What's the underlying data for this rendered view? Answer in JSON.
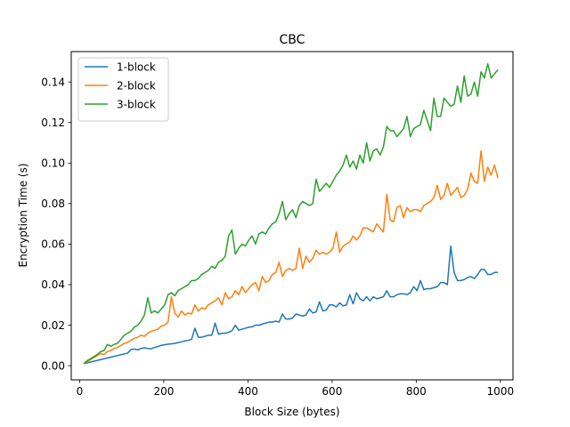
{
  "chart_data": {
    "type": "line",
    "title": "CBC",
    "xlabel": "Block Size (bytes)",
    "ylabel": "Encryption Time (s)",
    "xlim": [
      -20,
      1030
    ],
    "ylim": [
      -0.007,
      0.155
    ],
    "xticks": [
      0,
      200,
      400,
      600,
      800,
      1000
    ],
    "xtick_labels": [
      "0",
      "200",
      "400",
      "600",
      "800",
      "1000"
    ],
    "yticks": [
      0.0,
      0.02,
      0.04,
      0.06,
      0.08,
      0.1,
      0.12,
      0.14
    ],
    "ytick_labels": [
      "0.00",
      "0.02",
      "0.04",
      "0.06",
      "0.08",
      "0.10",
      "0.12",
      "0.14"
    ],
    "grid": false,
    "legend_position": "top-left",
    "x": [
      10,
      18,
      26,
      34,
      42,
      50,
      58,
      66,
      74,
      82,
      90,
      98,
      106,
      114,
      122,
      130,
      138,
      146,
      154,
      162,
      170,
      178,
      186,
      194,
      202,
      210,
      218,
      226,
      234,
      242,
      250,
      258,
      266,
      274,
      282,
      290,
      298,
      306,
      314,
      322,
      330,
      338,
      346,
      354,
      362,
      370,
      378,
      386,
      394,
      402,
      410,
      418,
      426,
      434,
      442,
      450,
      458,
      466,
      474,
      482,
      490,
      498,
      506,
      514,
      522,
      530,
      538,
      546,
      554,
      562,
      570,
      578,
      586,
      594,
      602,
      610,
      618,
      626,
      634,
      642,
      650,
      658,
      666,
      674,
      682,
      690,
      698,
      706,
      714,
      722,
      730,
      738,
      746,
      754,
      762,
      770,
      778,
      786,
      794,
      802,
      810,
      818,
      826,
      834,
      842,
      850,
      858,
      866,
      874,
      882,
      890,
      898,
      906,
      914,
      922,
      930,
      938,
      946,
      954,
      962,
      970,
      978,
      986,
      994
    ],
    "series": [
      {
        "name": "1-block",
        "color": "#1f77b4",
        "values": [
          0.001,
          0.0014,
          0.0018,
          0.0022,
          0.0026,
          0.003,
          0.0034,
          0.0038,
          0.0042,
          0.0046,
          0.005,
          0.0054,
          0.0058,
          0.0062,
          0.008,
          0.0082,
          0.0078,
          0.0085,
          0.0088,
          0.0085,
          0.0083,
          0.009,
          0.0095,
          0.01,
          0.0103,
          0.0106,
          0.0108,
          0.011,
          0.0114,
          0.0118,
          0.0122,
          0.0125,
          0.013,
          0.0185,
          0.014,
          0.014,
          0.0145,
          0.015,
          0.015,
          0.021,
          0.0155,
          0.016,
          0.016,
          0.0165,
          0.0172,
          0.02,
          0.0175,
          0.018,
          0.0185,
          0.019,
          0.0192,
          0.02,
          0.02,
          0.0205,
          0.021,
          0.0215,
          0.0215,
          0.022,
          0.0215,
          0.0255,
          0.023,
          0.023,
          0.0235,
          0.0255,
          0.025,
          0.0245,
          0.025,
          0.028,
          0.026,
          0.0265,
          0.0315,
          0.027,
          0.0275,
          0.03,
          0.03,
          0.029,
          0.031,
          0.0295,
          0.03,
          0.035,
          0.0305,
          0.036,
          0.033,
          0.032,
          0.034,
          0.032,
          0.034,
          0.033,
          0.0335,
          0.034,
          0.037,
          0.034,
          0.034,
          0.035,
          0.0355,
          0.0355,
          0.035,
          0.036,
          0.039,
          0.037,
          0.042,
          0.0375,
          0.038,
          0.038,
          0.0385,
          0.039,
          0.041,
          0.041,
          0.04,
          0.059,
          0.046,
          0.042,
          0.042,
          0.0425,
          0.0435,
          0.044,
          0.043,
          0.045,
          0.0475,
          0.0475,
          0.045,
          0.045,
          0.046,
          0.046
        ]
      },
      {
        "name": "2-block",
        "color": "#ff7f0e",
        "values": [
          0.001,
          0.002,
          0.003,
          0.004,
          0.005,
          0.006,
          0.0055,
          0.007,
          0.0075,
          0.0085,
          0.009,
          0.01,
          0.011,
          0.0115,
          0.0125,
          0.0135,
          0.014,
          0.015,
          0.0145,
          0.016,
          0.017,
          0.0175,
          0.018,
          0.0195,
          0.02,
          0.0215,
          0.034,
          0.026,
          0.024,
          0.027,
          0.025,
          0.026,
          0.0255,
          0.03,
          0.027,
          0.0285,
          0.028,
          0.03,
          0.031,
          0.032,
          0.0335,
          0.03,
          0.036,
          0.033,
          0.034,
          0.037,
          0.035,
          0.039,
          0.036,
          0.038,
          0.04,
          0.041,
          0.037,
          0.044,
          0.041,
          0.042,
          0.045,
          0.046,
          0.051,
          0.044,
          0.047,
          0.048,
          0.047,
          0.048,
          0.058,
          0.048,
          0.054,
          0.051,
          0.053,
          0.057,
          0.055,
          0.056,
          0.055,
          0.056,
          0.058,
          0.066,
          0.056,
          0.059,
          0.06,
          0.061,
          0.064,
          0.062,
          0.064,
          0.068,
          0.068,
          0.067,
          0.066,
          0.07,
          0.068,
          0.066,
          0.0845,
          0.072,
          0.071,
          0.078,
          0.079,
          0.073,
          0.078,
          0.076,
          0.077,
          0.077,
          0.076,
          0.079,
          0.08,
          0.081,
          0.083,
          0.089,
          0.082,
          0.084,
          0.09,
          0.084,
          0.086,
          0.088,
          0.083,
          0.084,
          0.087,
          0.095,
          0.091,
          0.09,
          0.106,
          0.091,
          0.098,
          0.094,
          0.099,
          0.0925
        ]
      },
      {
        "name": "3-block",
        "color": "#2ca02c",
        "values": [
          0.001,
          0.0025,
          0.0035,
          0.0045,
          0.0055,
          0.007,
          0.0075,
          0.0105,
          0.0095,
          0.0105,
          0.011,
          0.013,
          0.015,
          0.016,
          0.017,
          0.019,
          0.02,
          0.022,
          0.025,
          0.0335,
          0.026,
          0.027,
          0.026,
          0.028,
          0.03,
          0.035,
          0.036,
          0.0345,
          0.037,
          0.038,
          0.039,
          0.04,
          0.042,
          0.042,
          0.043,
          0.045,
          0.046,
          0.047,
          0.049,
          0.048,
          0.051,
          0.052,
          0.054,
          0.064,
          0.067,
          0.055,
          0.058,
          0.06,
          0.059,
          0.062,
          0.064,
          0.06,
          0.065,
          0.066,
          0.065,
          0.068,
          0.07,
          0.071,
          0.075,
          0.081,
          0.072,
          0.075,
          0.077,
          0.073,
          0.079,
          0.081,
          0.08,
          0.079,
          0.08,
          0.092,
          0.086,
          0.088,
          0.09,
          0.088,
          0.091,
          0.094,
          0.096,
          0.099,
          0.104,
          0.098,
          0.101,
          0.097,
          0.104,
          0.1,
          0.11,
          0.101,
          0.106,
          0.107,
          0.104,
          0.108,
          0.118,
          0.116,
          0.116,
          0.113,
          0.115,
          0.117,
          0.123,
          0.113,
          0.117,
          0.118,
          0.119,
          0.126,
          0.121,
          0.116,
          0.132,
          0.123,
          0.123,
          0.132,
          0.13,
          0.128,
          0.129,
          0.138,
          0.13,
          0.143,
          0.133,
          0.134,
          0.14,
          0.133,
          0.145,
          0.142,
          0.149,
          0.142,
          0.144,
          0.146
        ]
      }
    ]
  }
}
